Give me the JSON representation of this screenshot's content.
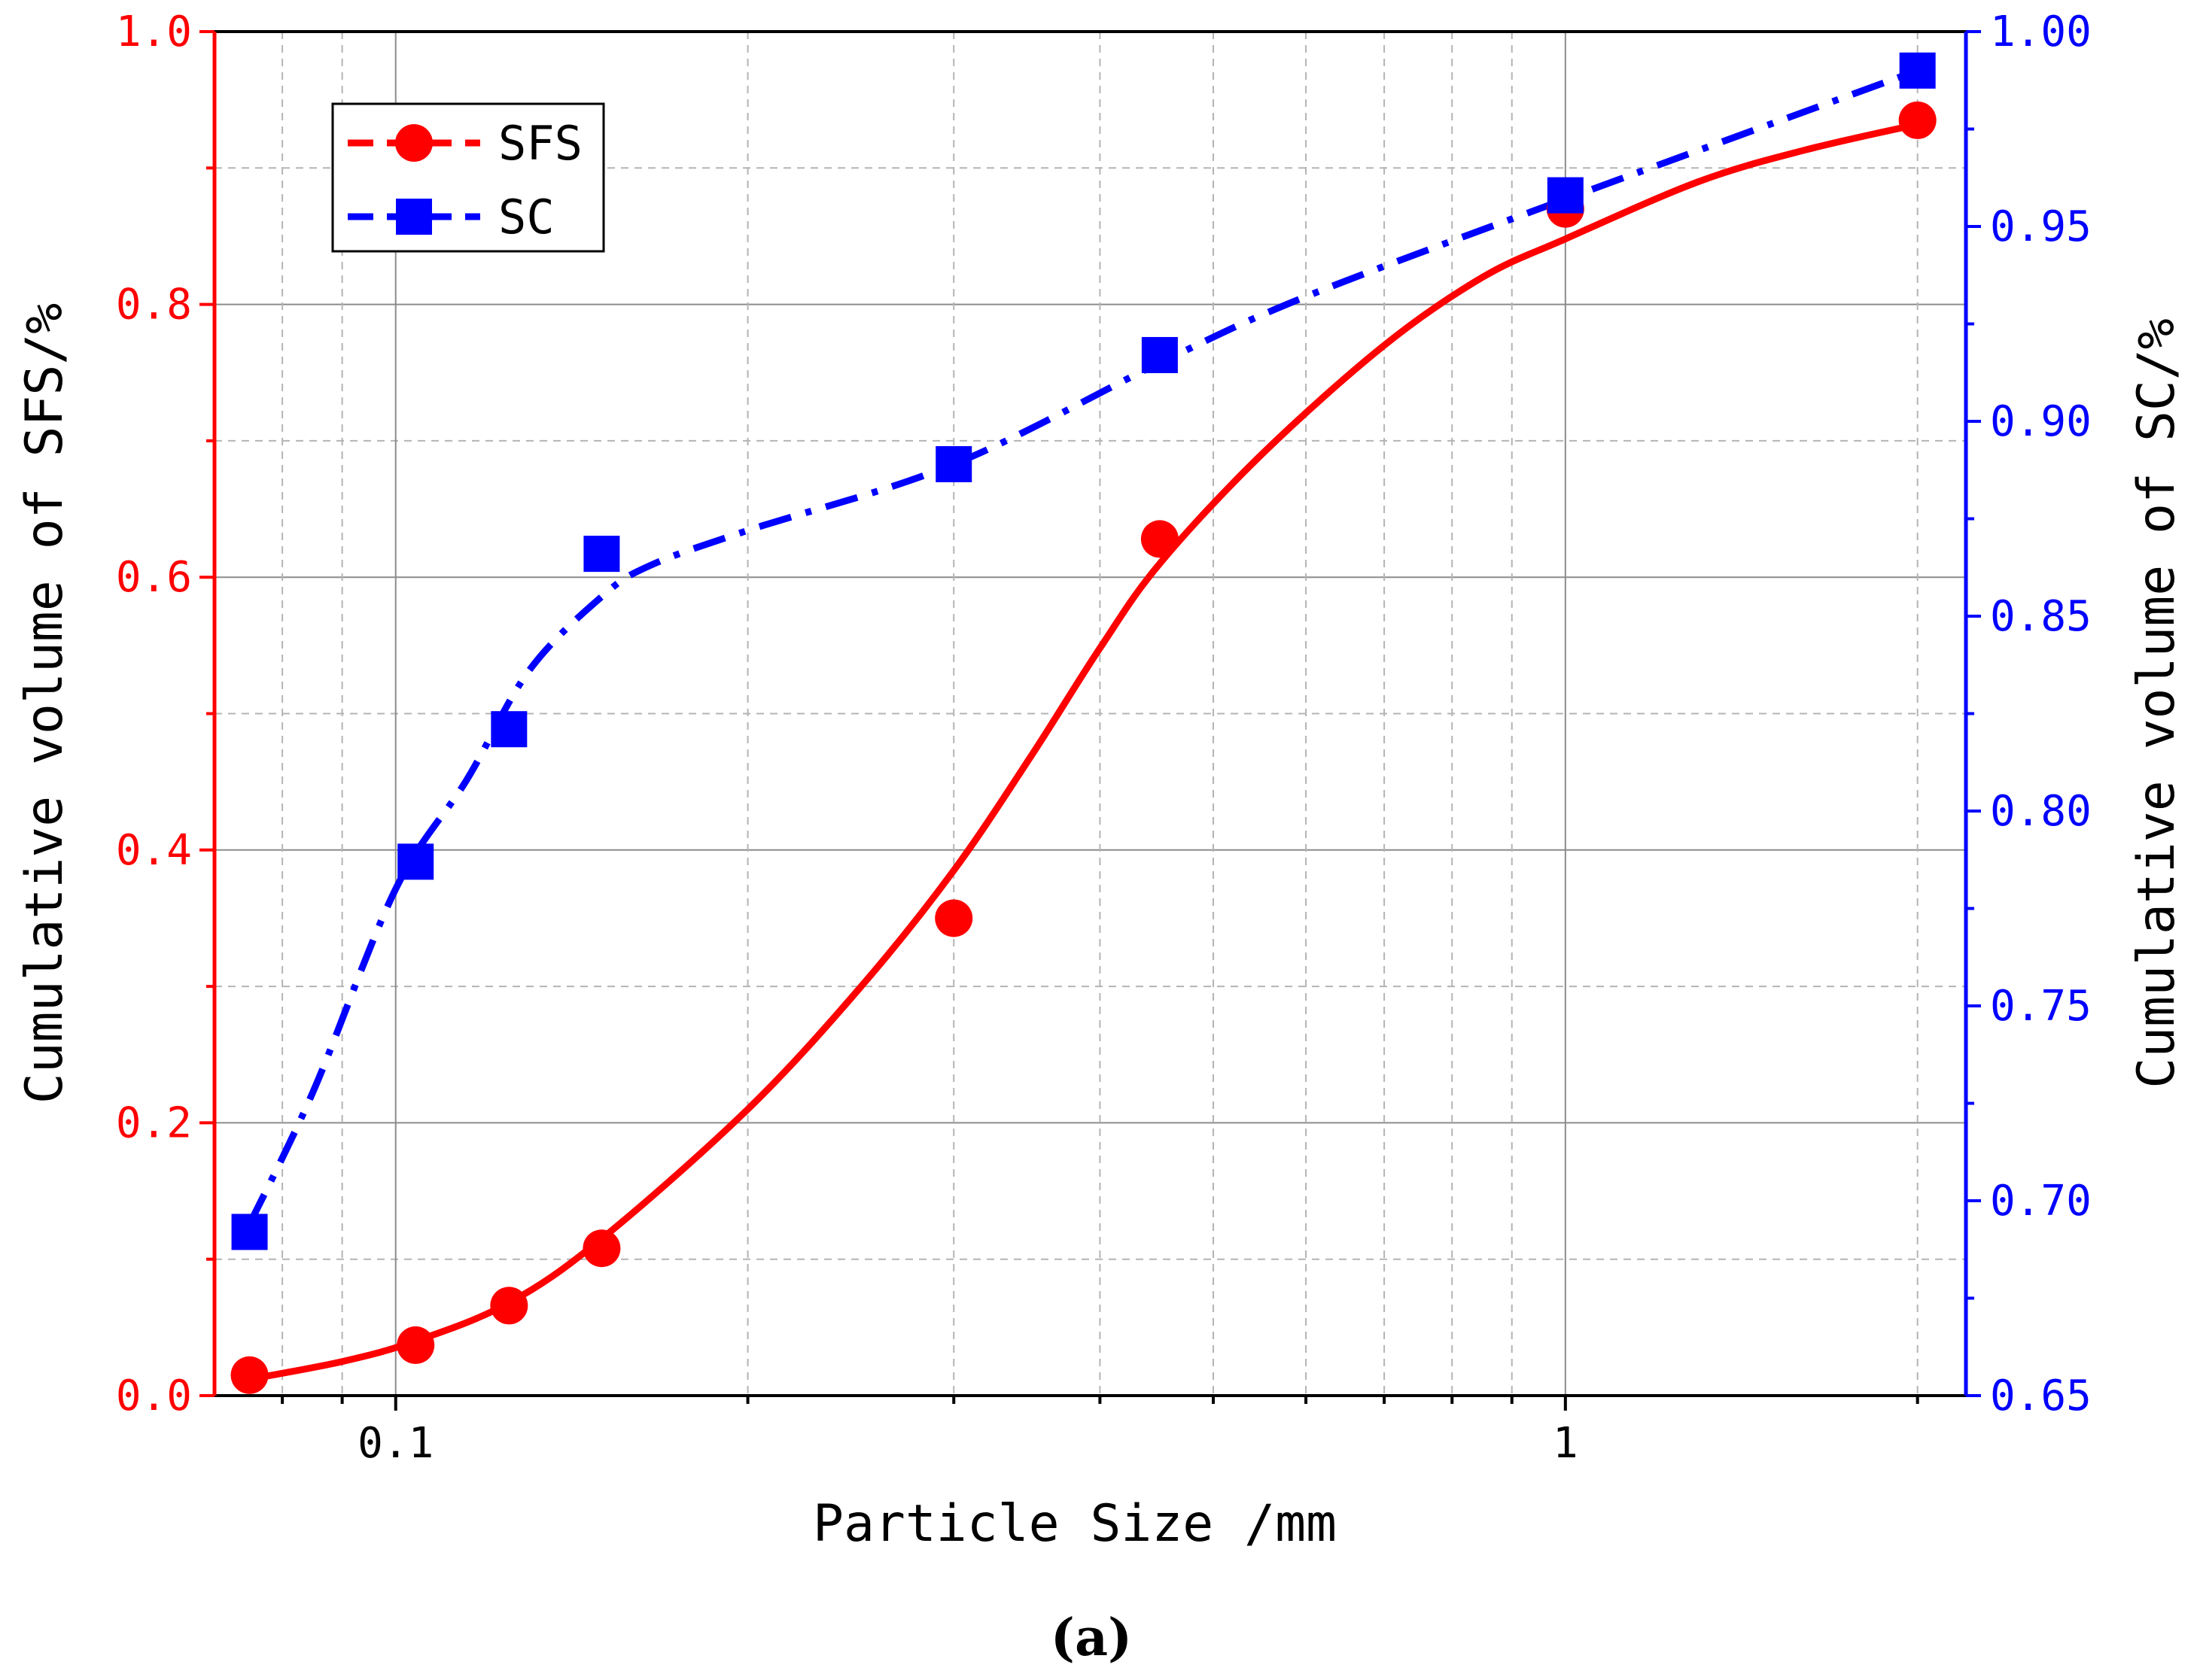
{
  "chart_data": {
    "type": "line",
    "xlabel": "Particle Size /mm",
    "xscale": "log",
    "xlim": [
      0.07,
      2.2
    ],
    "xticks": [
      {
        "value": 0.1,
        "label": "0.1"
      },
      {
        "value": 1,
        "label": "1"
      }
    ],
    "x_minor_ticks": [
      0.08,
      0.09,
      0.2,
      0.3,
      0.4,
      0.5,
      0.6,
      0.7,
      0.8,
      0.9,
      2
    ],
    "ylabel_left": "Cumulative volume of SFS/%",
    "ylim_left": [
      0.0,
      1.0
    ],
    "yticks_left": [
      "0.0",
      "0.2",
      "0.4",
      "0.6",
      "0.8",
      "1.0"
    ],
    "ylabel_right": "Cumulative volume of SC/%",
    "ylim_right": [
      0.65,
      1.0
    ],
    "yticks_right": [
      "0.65",
      "0.70",
      "0.75",
      "0.80",
      "0.85",
      "0.90",
      "0.95",
      "1.00"
    ],
    "legend_position": "top-left",
    "caption": "(a)",
    "series": [
      {
        "name": "SFS",
        "axis": "left",
        "color": "#ff0000",
        "marker": "circle",
        "line_style": "solid",
        "x": [
          0.075,
          0.104,
          0.125,
          0.15,
          0.3,
          0.45,
          1.0,
          2.0
        ],
        "values": [
          0.015,
          0.037,
          0.066,
          0.108,
          0.35,
          0.628,
          0.87,
          0.935
        ],
        "fit_curve": {
          "x": [
            0.075,
            0.09,
            0.104,
            0.125,
            0.15,
            0.2,
            0.25,
            0.3,
            0.35,
            0.4,
            0.45,
            0.55,
            0.7,
            0.85,
            1.0,
            1.3,
            1.6,
            2.0
          ],
          "values": [
            0.012,
            0.025,
            0.04,
            0.068,
            0.115,
            0.21,
            0.3,
            0.385,
            0.47,
            0.548,
            0.61,
            0.69,
            0.77,
            0.82,
            0.848,
            0.89,
            0.913,
            0.932
          ]
        }
      },
      {
        "name": "SC",
        "axis": "right",
        "color": "#0000ff",
        "marker": "square",
        "line_style": "dash-dot",
        "x": [
          0.075,
          0.104,
          0.125,
          0.15,
          0.3,
          0.45,
          1.0,
          2.0
        ],
        "values": [
          0.692,
          0.787,
          0.821,
          0.866,
          0.889,
          0.917,
          0.958,
          0.99
        ],
        "fit_curve": {
          "x": [
            0.075,
            0.085,
            0.1,
            0.115,
            0.13,
            0.15,
            0.165,
            0.2,
            0.3,
            0.45,
            0.6,
            1.0,
            2.0
          ],
          "values": [
            0.694,
            0.728,
            0.78,
            0.808,
            0.836,
            0.855,
            0.863,
            0.872,
            0.889,
            0.915,
            0.932,
            0.957,
            0.99
          ]
        }
      }
    ]
  }
}
